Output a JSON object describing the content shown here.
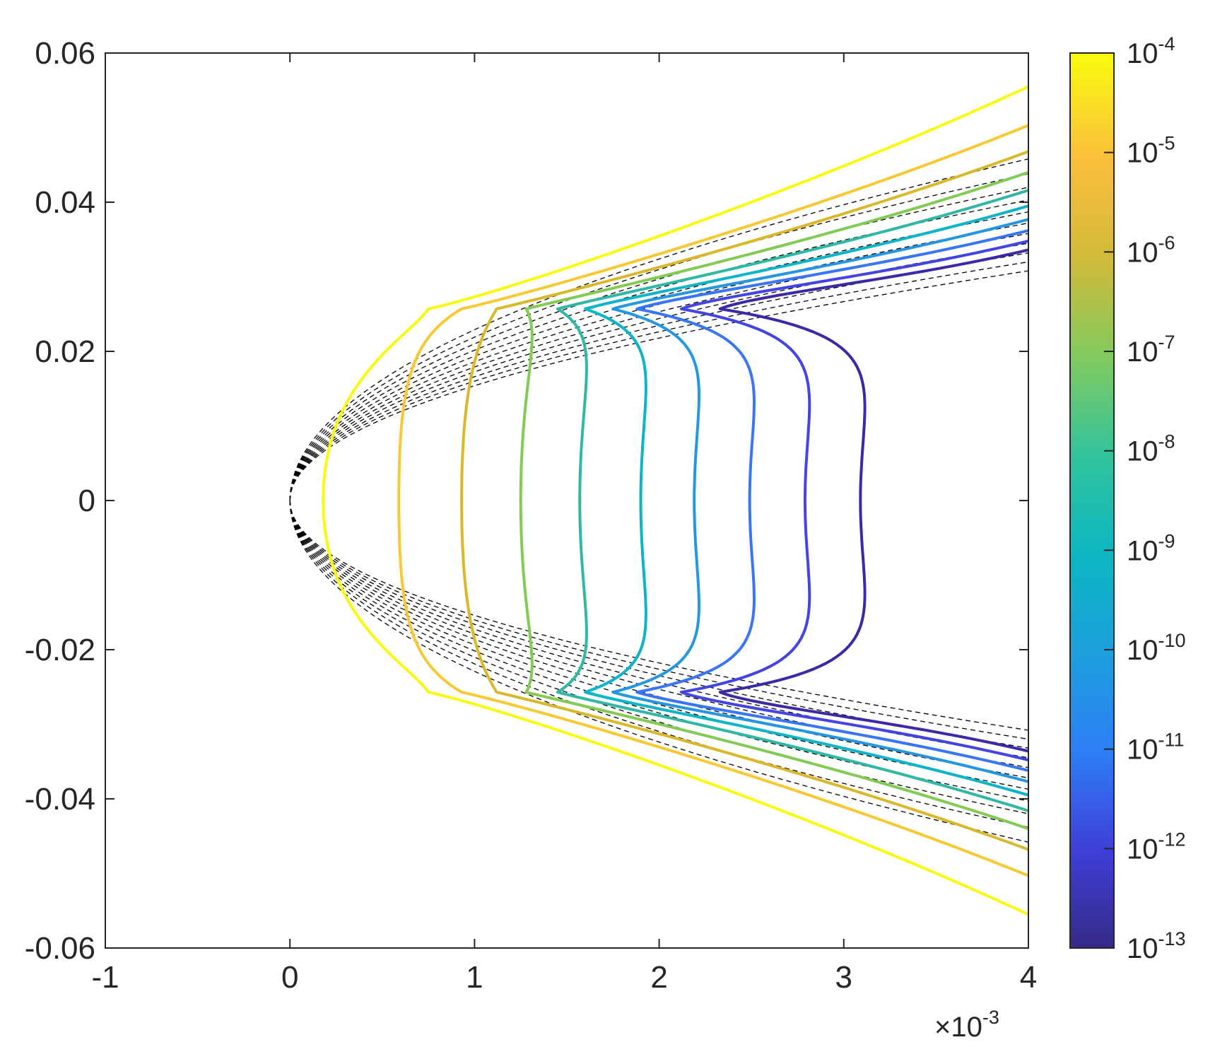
{
  "chart_data": {
    "type": "line",
    "title": "",
    "xlabel": "",
    "ylabel": "",
    "xlim": [
      -0.001,
      0.004
    ],
    "ylim": [
      -0.06,
      0.06
    ],
    "x_multiplier_label": {
      "base": "×10",
      "exponent": "-3"
    },
    "x_ticks": [
      -0.001,
      0,
      0.001,
      0.002,
      0.003,
      0.004
    ],
    "x_tick_labels": [
      "-1",
      "0",
      "1",
      "2",
      "3",
      "4"
    ],
    "y_ticks": [
      0.06,
      0.04,
      0.02,
      0,
      -0.02,
      -0.04,
      -0.06
    ],
    "y_tick_labels": [
      "0.06",
      "0.04",
      "0.02",
      "0",
      "-0.02",
      "-0.04",
      "-0.06"
    ],
    "grid": false,
    "box": true,
    "colorbar": {
      "scale": "log",
      "colormap": "parula",
      "ticks": [
        {
          "base": "10",
          "exponent": "-4"
        },
        {
          "base": "10",
          "exponent": "-5"
        },
        {
          "base": "10",
          "exponent": "-6"
        },
        {
          "base": "10",
          "exponent": "-7"
        },
        {
          "base": "10",
          "exponent": "-8"
        },
        {
          "base": "10",
          "exponent": "-9"
        },
        {
          "base": "10",
          "exponent": "-10"
        },
        {
          "base": "10",
          "exponent": "-11"
        },
        {
          "base": "10",
          "exponent": "-12"
        },
        {
          "base": "10",
          "exponent": "-13"
        }
      ],
      "range_log10": [
        -13,
        -4
      ]
    },
    "contour_series": [
      {
        "level_log10": -4,
        "color": "#f9fb0e",
        "tip": [
          0.00075,
          0.0257
        ],
        "x_mid": 0.00018,
        "x_far": 0.004,
        "y_far": 0.0555
      },
      {
        "level_log10": -5,
        "color": "#f8c932",
        "tip": [
          0.00093,
          0.0257
        ],
        "x_mid": 0.00059,
        "x_far": 0.004,
        "y_far": 0.0503
      },
      {
        "level_log10": -6,
        "color": "#d9b92a",
        "tip": [
          0.00112,
          0.0257
        ],
        "x_mid": 0.00093,
        "x_far": 0.004,
        "y_far": 0.0468
      },
      {
        "level_log10": -7,
        "color": "#83cb55",
        "tip": [
          0.00128,
          0.0257
        ],
        "x_mid": 0.00125,
        "x_far": 0.004,
        "y_far": 0.044
      },
      {
        "level_log10": -8,
        "color": "#2fb8a3",
        "tip": [
          0.00145,
          0.0257
        ],
        "x_mid": 0.00157,
        "x_far": 0.004,
        "y_far": 0.0416
      },
      {
        "level_log10": -9,
        "color": "#0bb5c9",
        "tip": [
          0.0016,
          0.0257
        ],
        "x_mid": 0.0019,
        "x_far": 0.004,
        "y_far": 0.0395
      },
      {
        "level_log10": -10,
        "color": "#2597e0",
        "tip": [
          0.00175,
          0.0257
        ],
        "x_mid": 0.00219,
        "x_far": 0.004,
        "y_far": 0.0377
      },
      {
        "level_log10": -11,
        "color": "#3876f7",
        "tip": [
          0.00188,
          0.0257
        ],
        "x_mid": 0.00249,
        "x_far": 0.004,
        "y_far": 0.0362
      },
      {
        "level_log10": -12,
        "color": "#4444e6",
        "tip": [
          0.00212,
          0.0257
        ],
        "x_mid": 0.00279,
        "x_far": 0.004,
        "y_far": 0.0348
      },
      {
        "level_log10": -13,
        "color": "#3a2aa8",
        "tip": [
          0.00233,
          0.0257
        ],
        "x_mid": 0.00309,
        "x_far": 0.004,
        "y_far": 0.0336
      }
    ],
    "dashed_series": {
      "color": "#000000",
      "style": "dashed",
      "origin": [
        0,
        0
      ],
      "end_x": 0.004,
      "end_y": [
        0.0308,
        0.032,
        0.0332,
        0.0345,
        0.0358,
        0.0372,
        0.0387,
        0.0403,
        0.042,
        0.0438,
        0.0458
      ]
    }
  }
}
